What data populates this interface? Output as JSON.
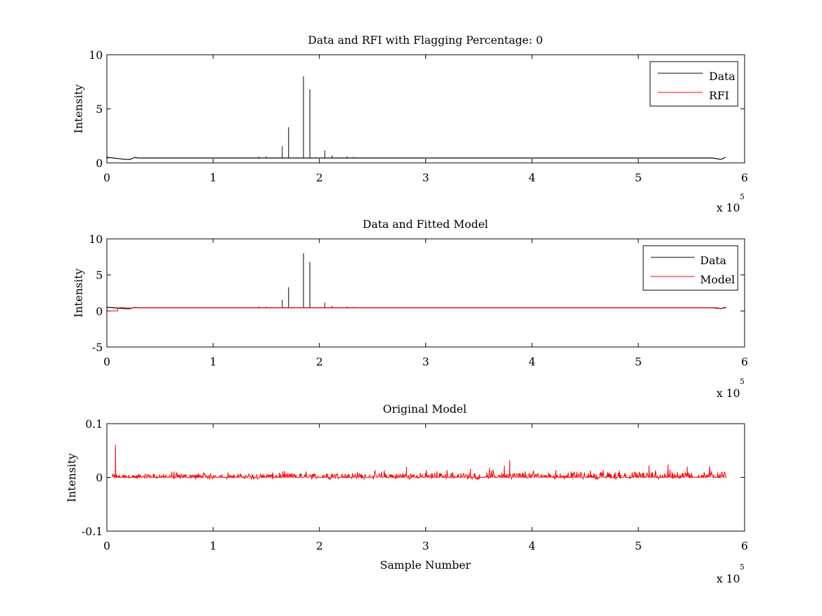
{
  "chart_data": [
    {
      "type": "line",
      "title": "Data and RFI with Flagging Percentage: 0",
      "xlabel": "",
      "ylabel": "Intensity",
      "xlim": [
        0,
        6
      ],
      "ylim": [
        0,
        10
      ],
      "x_multiplier_label": "x 10",
      "x_multiplier_exponent": "5",
      "x_ticks": [
        "0",
        "1",
        "2",
        "3",
        "4",
        "5",
        "6"
      ],
      "y_ticks": [
        "0",
        "5",
        "10"
      ],
      "grid": false,
      "legend": "top-right",
      "series": [
        {
          "name": "Data",
          "color": "#000000",
          "baseline": 0.45,
          "x_end": 5.83,
          "edge_dips": [
            [
              0.0,
              0.6
            ],
            [
              0.01,
              0.45
            ],
            [
              0.02,
              0.5
            ],
            [
              0.17,
              0.33
            ],
            [
              0.22,
              0.32
            ],
            [
              0.26,
              0.5
            ],
            [
              5.74,
              0.38
            ],
            [
              5.78,
              0.33
            ],
            [
              5.82,
              0.52
            ]
          ],
          "spikes": [
            [
              1.2,
              0.5
            ],
            [
              1.26,
              0.5
            ],
            [
              1.43,
              0.6
            ],
            [
              1.5,
              0.6
            ],
            [
              1.65,
              1.55
            ],
            [
              1.71,
              3.3
            ],
            [
              1.85,
              8.0
            ],
            [
              1.91,
              6.8
            ],
            [
              2.05,
              1.15
            ],
            [
              2.12,
              0.7
            ],
            [
              2.26,
              0.6
            ],
            [
              2.32,
              0.55
            ],
            [
              2.52,
              0.5
            ],
            [
              2.58,
              0.5
            ]
          ]
        },
        {
          "name": "RFI",
          "color": "#ff0000",
          "values": []
        }
      ]
    },
    {
      "type": "line",
      "title": "Data and Fitted Model",
      "xlabel": "",
      "ylabel": "Intensity",
      "xlim": [
        0,
        6
      ],
      "ylim": [
        -5,
        10
      ],
      "x_multiplier_label": "x 10",
      "x_multiplier_exponent": "5",
      "x_ticks": [
        "0",
        "1",
        "2",
        "3",
        "4",
        "5",
        "6"
      ],
      "y_ticks": [
        "-5",
        "0",
        "5",
        "10"
      ],
      "grid": false,
      "legend": "top-right",
      "series": [
        {
          "name": "Data",
          "color": "#000000",
          "baseline": 0.45,
          "x_end": 5.83,
          "edge_dips": [
            [
              0.0,
              0.6
            ],
            [
              0.01,
              0.45
            ],
            [
              0.02,
              0.5
            ],
            [
              0.17,
              0.33
            ],
            [
              0.22,
              0.32
            ],
            [
              0.26,
              0.5
            ],
            [
              5.74,
              0.38
            ],
            [
              5.78,
              0.33
            ],
            [
              5.82,
              0.52
            ]
          ],
          "spikes": [
            [
              1.2,
              0.5
            ],
            [
              1.26,
              0.5
            ],
            [
              1.43,
              0.6
            ],
            [
              1.5,
              0.6
            ],
            [
              1.65,
              1.55
            ],
            [
              1.71,
              3.3
            ],
            [
              1.85,
              8.0
            ],
            [
              1.91,
              6.8
            ],
            [
              2.05,
              1.15
            ],
            [
              2.12,
              0.7
            ],
            [
              2.26,
              0.6
            ],
            [
              2.32,
              0.55
            ],
            [
              2.52,
              0.5
            ],
            [
              2.58,
              0.5
            ]
          ]
        },
        {
          "name": "Model",
          "color": "#ff0000",
          "x": [
            0,
            0.0001,
            0.1,
            0.1001,
            0.16,
            0.22,
            0.26,
            5.74,
            5.78,
            5.83
          ],
          "y": [
            0.5,
            0.0,
            0.0,
            0.45,
            0.45,
            0.38,
            0.45,
            0.45,
            0.33,
            0.45
          ]
        }
      ]
    },
    {
      "type": "line",
      "title": "Original Model",
      "xlabel": "Sample Number",
      "ylabel": "Intensity",
      "xlim": [
        0,
        6
      ],
      "ylim": [
        -0.1,
        0.1
      ],
      "x_multiplier_label": "x 10",
      "x_multiplier_exponent": "5",
      "x_ticks": [
        "0",
        "1",
        "2",
        "3",
        "4",
        "5",
        "6"
      ],
      "y_ticks": [
        "-0.1",
        "0",
        "0.1"
      ],
      "grid": false,
      "legend": "none",
      "series": [
        {
          "color": "#ff0000",
          "x_range": [
            0.05,
            5.83
          ],
          "noise_amplitude": 0.01,
          "noise_trend_end": 0.018,
          "peaks": [
            [
              0.08,
              0.061
            ],
            [
              2.82,
              0.02
            ],
            [
              3.42,
              0.016
            ],
            [
              3.6,
              0.018
            ],
            [
              3.74,
              0.022
            ],
            [
              3.79,
              0.032
            ],
            [
              5.1,
              0.022
            ],
            [
              5.28,
              0.024
            ],
            [
              5.46,
              0.02
            ],
            [
              5.67,
              0.021
            ]
          ]
        }
      ]
    }
  ]
}
